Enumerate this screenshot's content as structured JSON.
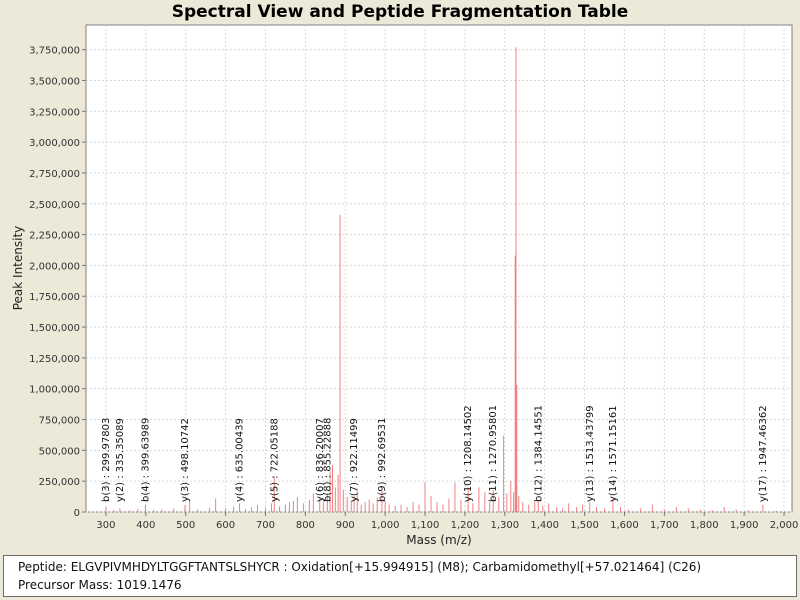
{
  "chart_data": {
    "type": "line",
    "title": "Spectral View and Peptide Fragmentation Table",
    "xlabel": "Mass (m/z)",
    "ylabel": "Peak Intensity",
    "xlim": [
      250,
      2020
    ],
    "ylim": [
      0,
      3950000
    ],
    "x_ticks": [
      300,
      400,
      500,
      600,
      700,
      800,
      900,
      1000,
      1100,
      1200,
      1300,
      1400,
      1500,
      1600,
      1700,
      1800,
      1900,
      2000
    ],
    "x_tick_labels": [
      "300",
      "400",
      "500",
      "600",
      "700",
      "800",
      "900",
      "1,000",
      "1,100",
      "1,200",
      "1,300",
      "1,400",
      "1,500",
      "1,600",
      "1,700",
      "1,800",
      "1,900",
      "2,000"
    ],
    "y_ticks": [
      0,
      250000,
      500000,
      750000,
      1000000,
      1250000,
      1500000,
      1750000,
      2000000,
      2250000,
      2500000,
      2750000,
      3000000,
      3250000,
      3500000,
      3750000
    ],
    "y_tick_labels": [
      "0",
      "250,000",
      "500,000",
      "750,000",
      "1,000,000",
      "1,250,000",
      "1,500,000",
      "1,750,000",
      "2,000,000",
      "2,250,000",
      "2,500,000",
      "2,750,000",
      "3,000,000",
      "3,250,000",
      "3,500,000",
      "3,750,000"
    ],
    "peak_color": "#f08080",
    "peaks": [
      [
        300,
        40000
      ],
      [
        320,
        15000
      ],
      [
        335,
        30000
      ],
      [
        360,
        12000
      ],
      [
        380,
        25000
      ],
      [
        399,
        60000
      ],
      [
        420,
        15000
      ],
      [
        440,
        20000
      ],
      [
        470,
        30000
      ],
      [
        498,
        55000
      ],
      [
        510,
        100000
      ],
      [
        530,
        20000
      ],
      [
        560,
        35000
      ],
      [
        575,
        110000
      ],
      [
        600,
        30000
      ],
      [
        620,
        45000
      ],
      [
        635,
        70000
      ],
      [
        650,
        25000
      ],
      [
        665,
        40000
      ],
      [
        680,
        55000
      ],
      [
        700,
        35000
      ],
      [
        715,
        70000
      ],
      [
        722,
        290000
      ],
      [
        735,
        45000
      ],
      [
        750,
        60000
      ],
      [
        760,
        80000
      ],
      [
        770,
        90000
      ],
      [
        780,
        120000
      ],
      [
        795,
        70000
      ],
      [
        810,
        100000
      ],
      [
        820,
        150000
      ],
      [
        836,
        110000
      ],
      [
        845,
        80000
      ],
      [
        855,
        140000
      ],
      [
        862,
        330000
      ],
      [
        868,
        380000
      ],
      [
        875,
        200000
      ],
      [
        882,
        300000
      ],
      [
        887,
        2410000
      ],
      [
        895,
        180000
      ],
      [
        905,
        120000
      ],
      [
        915,
        90000
      ],
      [
        922,
        130000
      ],
      [
        930,
        190000
      ],
      [
        940,
        60000
      ],
      [
        950,
        80000
      ],
      [
        960,
        100000
      ],
      [
        970,
        70000
      ],
      [
        980,
        120000
      ],
      [
        992,
        170000
      ],
      [
        1000,
        90000
      ],
      [
        1010,
        60000
      ],
      [
        1025,
        50000
      ],
      [
        1040,
        60000
      ],
      [
        1055,
        40000
      ],
      [
        1070,
        80000
      ],
      [
        1085,
        60000
      ],
      [
        1100,
        240000
      ],
      [
        1115,
        130000
      ],
      [
        1130,
        80000
      ],
      [
        1145,
        60000
      ],
      [
        1160,
        110000
      ],
      [
        1175,
        240000
      ],
      [
        1190,
        100000
      ],
      [
        1208,
        200000
      ],
      [
        1220,
        70000
      ],
      [
        1235,
        200000
      ],
      [
        1250,
        160000
      ],
      [
        1262,
        80000
      ],
      [
        1271,
        180000
      ],
      [
        1285,
        120000
      ],
      [
        1297,
        620000
      ],
      [
        1305,
        150000
      ],
      [
        1315,
        250000
      ],
      [
        1322,
        160000
      ],
      [
        1326,
        2080000
      ],
      [
        1328,
        3770000
      ],
      [
        1330,
        1030000
      ],
      [
        1335,
        130000
      ],
      [
        1345,
        80000
      ],
      [
        1360,
        60000
      ],
      [
        1375,
        80000
      ],
      [
        1384,
        90000
      ],
      [
        1395,
        50000
      ],
      [
        1410,
        70000
      ],
      [
        1430,
        40000
      ],
      [
        1445,
        30000
      ],
      [
        1460,
        70000
      ],
      [
        1480,
        40000
      ],
      [
        1495,
        60000
      ],
      [
        1513,
        80000
      ],
      [
        1530,
        40000
      ],
      [
        1550,
        30000
      ],
      [
        1571,
        110000
      ],
      [
        1590,
        40000
      ],
      [
        1610,
        20000
      ],
      [
        1640,
        30000
      ],
      [
        1670,
        60000
      ],
      [
        1700,
        20000
      ],
      [
        1730,
        40000
      ],
      [
        1760,
        30000
      ],
      [
        1790,
        20000
      ],
      [
        1820,
        15000
      ],
      [
        1850,
        40000
      ],
      [
        1880,
        20000
      ],
      [
        1910,
        15000
      ],
      [
        1947,
        60000
      ],
      [
        1980,
        10000
      ]
    ],
    "annotations": [
      {
        "label": "b(3) : 299.97803",
        "x": 299.98
      },
      {
        "label": "y(2) : 335.35089",
        "x": 335.35
      },
      {
        "label": "b(4) : 399.63989",
        "x": 399.64
      },
      {
        "label": "y(3) : 498.10742",
        "x": 498.11
      },
      {
        "label": "y(4) : 635.00439",
        "x": 635.0
      },
      {
        "label": "y(5) : 722.05188",
        "x": 722.05
      },
      {
        "label": "y(6) : 836.20007",
        "x": 836.2
      },
      {
        "label": "b(8) : 855.22888",
        "x": 855.23
      },
      {
        "label": "y(7) : 922.11499",
        "x": 922.11
      },
      {
        "label": "b(9) : 992.69531",
        "x": 992.7
      },
      {
        "label": "y(10) : 1208.14502",
        "x": 1208.15
      },
      {
        "label": "b(11) : 1270.95801",
        "x": 1270.96
      },
      {
        "label": "b(12) : 1384.14551",
        "x": 1384.15
      },
      {
        "label": "y(13) : 1513.43799",
        "x": 1513.44
      },
      {
        "label": "y(14) : 1571.15161",
        "x": 1571.15
      },
      {
        "label": "y(17) : 1947.46362",
        "x": 1947.46
      }
    ]
  },
  "info": {
    "peptide": "Peptide: ELGVPIVMHDYLTGGFTANTSLSHYCR : Oxidation[+15.994915] (M8); Carbamidomethyl[+57.021464] (C26)",
    "precursor": "Precursor Mass: 1019.1476"
  }
}
